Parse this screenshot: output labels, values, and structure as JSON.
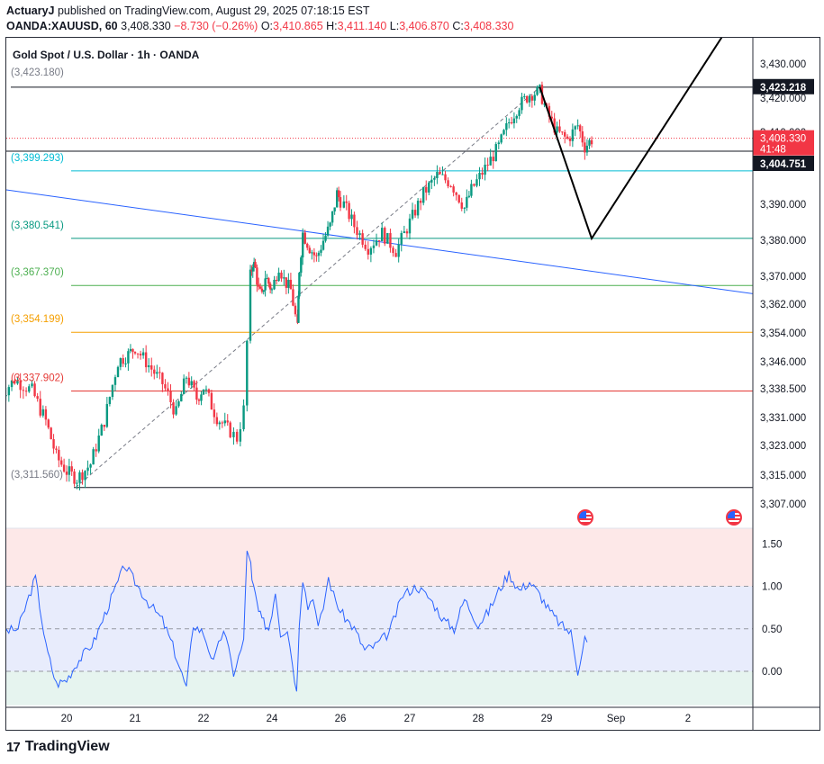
{
  "header": {
    "user": "ActuaryJ",
    "published": "published on TradingView.com, August 29, 2025 07:18:15 EST",
    "symbol": "OANDA:XAUUSD, 60",
    "last": "3,408.330",
    "change": "−8.730 (−0.26%)",
    "o_label": "O:",
    "o_val": "3,410.865",
    "h_label": "H:",
    "h_val": "3,411.140",
    "l_label": "L:",
    "l_val": "3,406.870",
    "c_label": "C:",
    "c_val": "3,408.330"
  },
  "chart_title": "Gold Spot / U.S. Dollar · 1h · OANDA",
  "brand": "TradingView",
  "colors": {
    "up": "#089981",
    "down": "#f23645",
    "rsi": "#2962ff",
    "trend": "#2962ff",
    "fib_top": "#434651",
    "fib_236": "#089981",
    "fib_382": "#089981",
    "fib_5": "#4caf50",
    "fib_618": "#f59f00",
    "fib_786": "#e53935"
  },
  "chart_data": [
    {
      "type": "candlestick",
      "title": "Gold Spot / U.S. Dollar · 1h · OANDA",
      "price_axis_ticks": [
        "3,430.000",
        "3,420.000",
        "3,410.000",
        "3,390.000",
        "3,380.000",
        "3,370.000",
        "3,362.000",
        "3,354.000",
        "3,346.000",
        "3,338.500",
        "3,331.000",
        "3,323.000",
        "3,315.000",
        "3,307.000"
      ],
      "price_axis_badges": [
        {
          "label": "3,423.218",
          "style": "black"
        },
        {
          "label": "3,408.330",
          "sub": "41:48",
          "style": "red"
        },
        {
          "label": "3,404.751",
          "style": "black"
        }
      ],
      "x_axis_ticks": [
        "20",
        "21",
        "22",
        "24",
        "26",
        "27",
        "28",
        "29",
        "Sep",
        "2"
      ],
      "fib_levels": [
        {
          "label": "(3,423.180)",
          "price": 3423.18,
          "color": "#787b86"
        },
        {
          "label": "(3,399.293)",
          "price": 3399.293,
          "color": "#00bcd4"
        },
        {
          "label": "(3,380.541)",
          "price": 3380.541,
          "color": "#089981"
        },
        {
          "label": "(3,367.370)",
          "price": 3367.37,
          "color": "#4caf50"
        },
        {
          "label": "(3,354.199)",
          "price": 3354.199,
          "color": "#f59f00"
        },
        {
          "label": "(3,337.902)",
          "price": 3337.902,
          "color": "#e53935"
        },
        {
          "label": "(3,311.560)",
          "price": 3311.56,
          "color": "#787b86"
        }
      ],
      "projection_path": [
        {
          "t": 28.9,
          "price": 3423.2
        },
        {
          "t": 29.65,
          "price": 3380.5
        },
        {
          "t": 31.5,
          "price": 3438
        }
      ],
      "trendline": [
        {
          "t": 19.0,
          "price": 3394
        },
        {
          "t": 31.95,
          "price": 3365
        }
      ],
      "close_path": [
        {
          "t": 19.0,
          "price": 3336
        },
        {
          "t": 19.25,
          "price": 3341
        },
        {
          "t": 19.5,
          "price": 3338
        },
        {
          "t": 19.7,
          "price": 3330
        },
        {
          "t": 19.85,
          "price": 3320
        },
        {
          "t": 20.0,
          "price": 3316
        },
        {
          "t": 20.15,
          "price": 3314
        },
        {
          "t": 20.35,
          "price": 3318
        },
        {
          "t": 20.55,
          "price": 3330
        },
        {
          "t": 20.75,
          "price": 3346
        },
        {
          "t": 20.9,
          "price": 3348
        },
        {
          "t": 21.0,
          "price": 3350
        },
        {
          "t": 21.2,
          "price": 3345
        },
        {
          "t": 21.4,
          "price": 3340
        },
        {
          "t": 21.6,
          "price": 3332
        },
        {
          "t": 21.75,
          "price": 3342
        },
        {
          "t": 21.9,
          "price": 3336
        },
        {
          "t": 22.0,
          "price": 3339
        },
        {
          "t": 22.2,
          "price": 3331
        },
        {
          "t": 22.4,
          "price": 3327
        },
        {
          "t": 22.5,
          "price": 3325
        },
        {
          "t": 22.6,
          "price": 3333
        },
        {
          "t": 22.7,
          "price": 3370
        },
        {
          "t": 22.85,
          "price": 3374
        },
        {
          "t": 23.0,
          "price": 3372
        },
        {
          "t": 23.2,
          "price": 3366
        },
        {
          "t": 23.4,
          "price": 3364
        },
        {
          "t": 23.6,
          "price": 3370
        },
        {
          "t": 23.8,
          "price": 3368
        },
        {
          "t": 24.0,
          "price": 3366
        },
        {
          "t": 24.2,
          "price": 3373
        },
        {
          "t": 24.35,
          "price": 3369
        },
        {
          "t": 24.55,
          "price": 3366
        },
        {
          "t": 24.75,
          "price": 3355
        },
        {
          "t": 24.8,
          "price": 3372
        },
        {
          "t": 24.9,
          "price": 3382
        },
        {
          "t": 25.1,
          "price": 3378
        },
        {
          "t": 25.3,
          "price": 3375
        },
        {
          "t": 25.5,
          "price": 3380
        },
        {
          "t": 25.7,
          "price": 3384
        },
        {
          "t": 25.9,
          "price": 3393
        },
        {
          "t": 26.05,
          "price": 3390
        },
        {
          "t": 26.2,
          "price": 3384
        },
        {
          "t": 26.4,
          "price": 3378
        },
        {
          "t": 26.6,
          "price": 3382
        },
        {
          "t": 26.8,
          "price": 3377
        },
        {
          "t": 27.0,
          "price": 3385
        },
        {
          "t": 27.2,
          "price": 3393
        },
        {
          "t": 27.4,
          "price": 3398
        },
        {
          "t": 27.6,
          "price": 3396
        },
        {
          "t": 27.8,
          "price": 3389
        },
        {
          "t": 27.9,
          "price": 3394
        },
        {
          "t": 28.1,
          "price": 3400
        },
        {
          "t": 28.3,
          "price": 3406
        },
        {
          "t": 28.45,
          "price": 3413
        },
        {
          "t": 28.6,
          "price": 3418
        },
        {
          "t": 28.75,
          "price": 3421
        },
        {
          "t": 28.9,
          "price": 3422
        },
        {
          "t": 29.0,
          "price": 3416
        },
        {
          "t": 29.15,
          "price": 3410
        },
        {
          "t": 29.3,
          "price": 3408
        },
        {
          "t": 29.45,
          "price": 3412
        },
        {
          "t": 29.55,
          "price": 3406
        },
        {
          "t": 29.65,
          "price": 3408
        }
      ]
    },
    {
      "type": "line",
      "title": "",
      "y_axis_ticks": [
        "1.50",
        "1.00",
        "0.50",
        "0.00"
      ],
      "ylim": [
        -0.4,
        1.7
      ],
      "zones": [
        {
          "from": 1.0,
          "to": 1.7,
          "color": "#fde8e8"
        },
        {
          "from": 0.0,
          "to": 1.0,
          "color": "#e8ecfc"
        },
        {
          "from": -0.4,
          "to": 0.0,
          "color": "#e6f4ef"
        }
      ],
      "guides": [
        1.0,
        0.5,
        0.0
      ],
      "series": [
        {
          "values": [
            {
              "t": 19.0,
              "v": 0.45
            },
            {
              "t": 19.3,
              "v": 0.5
            },
            {
              "t": 19.55,
              "v": 1.1
            },
            {
              "t": 19.7,
              "v": 0.3
            },
            {
              "t": 19.85,
              "v": -0.15
            },
            {
              "t": 20.0,
              "v": -0.1
            },
            {
              "t": 20.15,
              "v": 0.1
            },
            {
              "t": 20.4,
              "v": 0.35
            },
            {
              "t": 20.65,
              "v": 0.85
            },
            {
              "t": 20.85,
              "v": 1.25
            },
            {
              "t": 21.0,
              "v": 1.05
            },
            {
              "t": 21.2,
              "v": 0.8
            },
            {
              "t": 21.4,
              "v": 0.6
            },
            {
              "t": 21.55,
              "v": 0.3
            },
            {
              "t": 21.65,
              "v": 0.05
            },
            {
              "t": 21.75,
              "v": -0.2
            },
            {
              "t": 21.85,
              "v": 0.55
            },
            {
              "t": 22.0,
              "v": 0.45
            },
            {
              "t": 22.15,
              "v": 0.1
            },
            {
              "t": 22.3,
              "v": 0.5
            },
            {
              "t": 22.45,
              "v": -0.02
            },
            {
              "t": 22.6,
              "v": 0.35
            },
            {
              "t": 22.65,
              "v": 1.45
            },
            {
              "t": 22.8,
              "v": 1.05
            },
            {
              "t": 23.0,
              "v": 0.9
            },
            {
              "t": 23.2,
              "v": 0.7
            },
            {
              "t": 23.4,
              "v": 0.6
            },
            {
              "t": 23.6,
              "v": 0.55
            },
            {
              "t": 23.8,
              "v": 0.5
            },
            {
              "t": 24.0,
              "v": 0.7
            },
            {
              "t": 24.1,
              "v": 0.95
            },
            {
              "t": 24.25,
              "v": 0.45
            },
            {
              "t": 24.45,
              "v": 0.5
            },
            {
              "t": 24.6,
              "v": 0.1
            },
            {
              "t": 24.72,
              "v": -0.25
            },
            {
              "t": 24.8,
              "v": 0.6
            },
            {
              "t": 24.9,
              "v": 1.1
            },
            {
              "t": 25.05,
              "v": 0.75
            },
            {
              "t": 25.2,
              "v": 0.9
            },
            {
              "t": 25.35,
              "v": 0.5
            },
            {
              "t": 25.5,
              "v": 0.75
            },
            {
              "t": 25.65,
              "v": 1.1
            },
            {
              "t": 25.8,
              "v": 0.9
            },
            {
              "t": 26.0,
              "v": 0.7
            },
            {
              "t": 26.2,
              "v": 0.5
            },
            {
              "t": 26.35,
              "v": 0.25
            },
            {
              "t": 26.5,
              "v": 0.3
            },
            {
              "t": 26.7,
              "v": 0.45
            },
            {
              "t": 26.9,
              "v": 0.9
            },
            {
              "t": 27.1,
              "v": 1.0
            },
            {
              "t": 27.3,
              "v": 0.85
            },
            {
              "t": 27.5,
              "v": 0.6
            },
            {
              "t": 27.65,
              "v": 0.5
            },
            {
              "t": 27.8,
              "v": 0.85
            },
            {
              "t": 28.0,
              "v": 0.55
            },
            {
              "t": 28.15,
              "v": 0.7
            },
            {
              "t": 28.3,
              "v": 0.95
            },
            {
              "t": 28.45,
              "v": 1.15
            },
            {
              "t": 28.6,
              "v": 0.95
            },
            {
              "t": 28.75,
              "v": 1.05
            },
            {
              "t": 28.9,
              "v": 0.9
            },
            {
              "t": 29.05,
              "v": 0.7
            },
            {
              "t": 29.2,
              "v": 0.55
            },
            {
              "t": 29.35,
              "v": 0.45
            },
            {
              "t": 29.45,
              "v": 0.0
            },
            {
              "t": 29.55,
              "v": 0.4
            },
            {
              "t": 29.62,
              "v": 0.25
            }
          ]
        }
      ]
    }
  ]
}
